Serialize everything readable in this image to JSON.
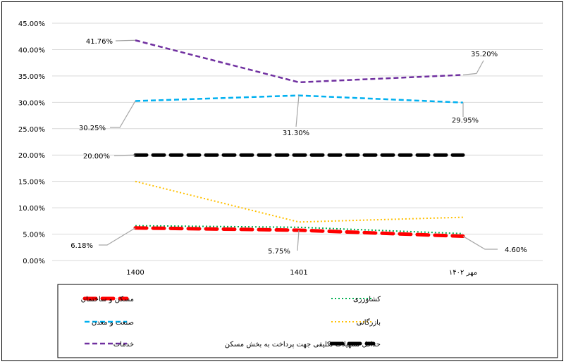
{
  "chart_data": {
    "type": "line",
    "title": "",
    "xlabel": "",
    "ylabel": "",
    "categories": [
      "1400",
      "1401",
      "مهر ۱۴۰۲"
    ],
    "ylim": [
      0,
      45
    ],
    "yticks": [
      "0.00%",
      "5.00%",
      "10.00%",
      "15.00%",
      "20.00%",
      "25.00%",
      "30.00%",
      "35.00%",
      "40.00%",
      "45.00%"
    ],
    "grid": true,
    "legend_position": "bottom",
    "series": [
      {
        "name": "مسکن و ساختمان",
        "values": [
          6.18,
          5.75,
          4.6
        ],
        "color": "#ff0000",
        "style": "thick-dash"
      },
      {
        "name": "کشاورزی",
        "values": [
          6.6,
          6.3,
          5.1
        ],
        "color": "#00b050",
        "style": "dotted"
      },
      {
        "name": "صنعت و معدن",
        "values": [
          30.25,
          31.3,
          29.95
        ],
        "color": "#00b0f0",
        "style": "dash"
      },
      {
        "name": "بازرگانی",
        "values": [
          15.0,
          7.3,
          8.2
        ],
        "color": "#ffc000",
        "style": "dotted"
      },
      {
        "name": "خدمات",
        "values": [
          41.76,
          33.8,
          35.2
        ],
        "color": "#7030a0",
        "style": "dash"
      },
      {
        "name": "حداقل تسهیلات تکلیفی جهت پرداخت به بخش مسکن",
        "values": [
          20.0,
          20.0,
          20.0
        ],
        "color": "#000000",
        "style": "thick-dash"
      }
    ],
    "annotations": [
      {
        "text": "41.76%",
        "series": 4,
        "point": 0
      },
      {
        "text": "35.20%",
        "series": 4,
        "point": 2
      },
      {
        "text": "30.25%",
        "series": 2,
        "point": 0
      },
      {
        "text": "31.30%",
        "series": 2,
        "point": 1
      },
      {
        "text": "29.95%",
        "series": 2,
        "point": 2
      },
      {
        "text": "20.00%",
        "series": 5,
        "point": 0
      },
      {
        "text": "6.18%",
        "series": 0,
        "point": 0
      },
      {
        "text": "5.75%",
        "series": 0,
        "point": 1
      },
      {
        "text": "4.60%",
        "series": 0,
        "point": 2
      }
    ]
  }
}
